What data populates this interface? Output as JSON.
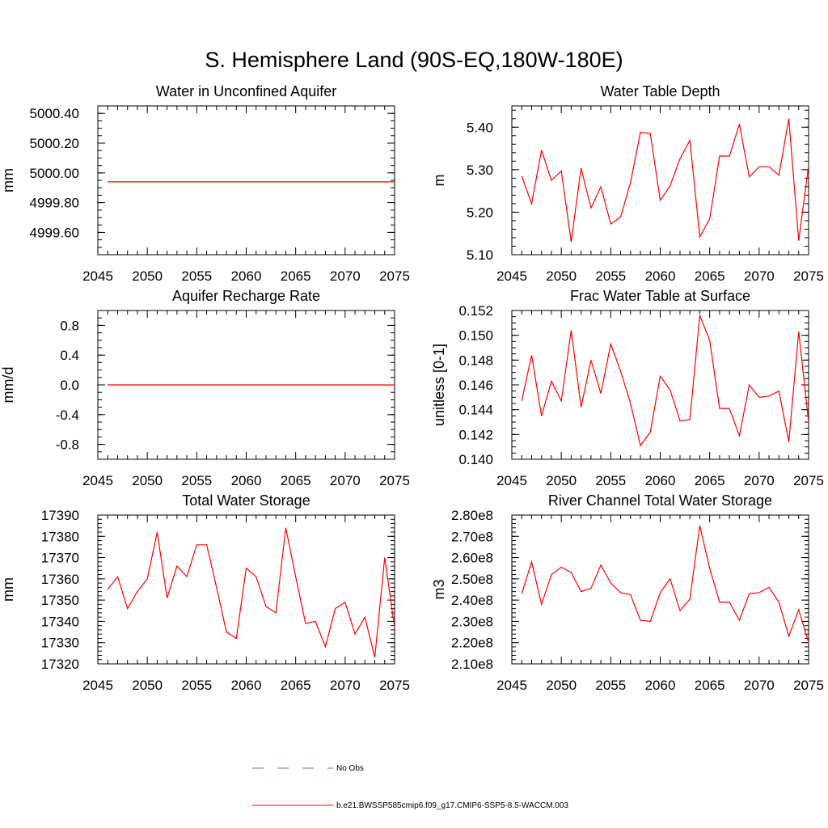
{
  "title": "S. Hemisphere Land (90S-EQ,180W-180E)",
  "legend": [
    {
      "label": "No Obs",
      "color": "#6e6eb4",
      "style": "dashed"
    },
    {
      "label": "b.e21.BWSSP585cmip6.f09_g17.CMIP6-SSP5-8.5-WACCM.003",
      "color": "#ff0000",
      "style": "solid"
    }
  ],
  "chart_data": [
    {
      "type": "line",
      "title": "Water in Unconfined Aquifer",
      "ylabel": "mm",
      "xlim": [
        2045,
        2075
      ],
      "ylim": [
        4999.45,
        5000.45
      ],
      "xticks": [
        "2045",
        "2050",
        "2055",
        "2060",
        "2065",
        "2070",
        "2075"
      ],
      "yticks": [
        {
          "v": 4999.6,
          "label": "4999.60"
        },
        {
          "v": 4999.8,
          "label": "4999.80"
        },
        {
          "v": 5000.0,
          "label": "5000.00"
        },
        {
          "v": 5000.2,
          "label": "5000.20"
        },
        {
          "v": 5000.4,
          "label": "5000.40"
        }
      ],
      "yminor": 0.05,
      "series": [
        {
          "name": "b.e21.BWSSP585cmip6.f09_g17.CMIP6-SSP5-8.5-WACCM.003",
          "x": [
            2046,
            2075
          ],
          "values": [
            4999.94,
            4999.94
          ]
        }
      ]
    },
    {
      "type": "line",
      "title": "Water Table Depth",
      "ylabel": "m",
      "xlim": [
        2045,
        2075
      ],
      "ylim": [
        5.1,
        5.45
      ],
      "xticks": [
        "2045",
        "2050",
        "2055",
        "2060",
        "2065",
        "2070",
        "2075"
      ],
      "yticks": [
        {
          "v": 5.1,
          "label": "5.10"
        },
        {
          "v": 5.2,
          "label": "5.20"
        },
        {
          "v": 5.3,
          "label": "5.30"
        },
        {
          "v": 5.4,
          "label": "5.40"
        }
      ],
      "yminor": 0.02,
      "series": [
        {
          "name": "b.e21.BWSSP585cmip6.f09_g17.CMIP6-SSP5-8.5-WACCM.003",
          "x": [
            2046,
            2047,
            2048,
            2049,
            2050,
            2051,
            2052,
            2053,
            2054,
            2055,
            2056,
            2057,
            2058,
            2059,
            2060,
            2061,
            2062,
            2063,
            2064,
            2065,
            2066,
            2067,
            2068,
            2069,
            2070,
            2071,
            2072,
            2073,
            2074,
            2075
          ],
          "values": [
            5.285,
            5.22,
            5.346,
            5.275,
            5.297,
            5.13,
            5.304,
            5.21,
            5.26,
            5.172,
            5.189,
            5.27,
            5.388,
            5.385,
            5.228,
            5.262,
            5.326,
            5.369,
            5.142,
            5.184,
            5.332,
            5.332,
            5.407,
            5.283,
            5.307,
            5.307,
            5.287,
            5.42,
            5.133,
            5.31
          ]
        }
      ]
    },
    {
      "type": "line",
      "title": "Aquifer Recharge Rate",
      "ylabel": "mm/d",
      "xlim": [
        2045,
        2075
      ],
      "ylim": [
        -1.0,
        1.0
      ],
      "xticks": [
        "2045",
        "2050",
        "2055",
        "2060",
        "2065",
        "2070",
        "2075"
      ],
      "yticks": [
        {
          "v": -0.8,
          "label": "-0.8"
        },
        {
          "v": -0.4,
          "label": "-0.4"
        },
        {
          "v": 0.0,
          "label": "0.0"
        },
        {
          "v": 0.4,
          "label": "0.4"
        },
        {
          "v": 0.8,
          "label": "0.8"
        }
      ],
      "yminor": 0.1,
      "series": [
        {
          "name": "b.e21.BWSSP585cmip6.f09_g17.CMIP6-SSP5-8.5-WACCM.003",
          "x": [
            2046,
            2075
          ],
          "values": [
            0.0,
            0.0
          ]
        }
      ]
    },
    {
      "type": "line",
      "title": "Frac Water Table at Surface",
      "ylabel": "unitless [0-1]",
      "xlim": [
        2045,
        2075
      ],
      "ylim": [
        0.14,
        0.152
      ],
      "xticks": [
        "2045",
        "2050",
        "2055",
        "2060",
        "2065",
        "2070",
        "2075"
      ],
      "yticks": [
        {
          "v": 0.14,
          "label": "0.140"
        },
        {
          "v": 0.142,
          "label": "0.142"
        },
        {
          "v": 0.144,
          "label": "0.144"
        },
        {
          "v": 0.146,
          "label": "0.146"
        },
        {
          "v": 0.148,
          "label": "0.148"
        },
        {
          "v": 0.15,
          "label": "0.150"
        },
        {
          "v": 0.152,
          "label": "0.152"
        }
      ],
      "yminor": 0.0005,
      "series": [
        {
          "name": "b.e21.BWSSP585cmip6.f09_g17.CMIP6-SSP5-8.5-WACCM.003",
          "x": [
            2046,
            2047,
            2048,
            2049,
            2050,
            2051,
            2052,
            2053,
            2054,
            2055,
            2056,
            2057,
            2058,
            2059,
            2060,
            2061,
            2062,
            2063,
            2064,
            2065,
            2066,
            2067,
            2068,
            2069,
            2070,
            2071,
            2072,
            2073,
            2074,
            2075
          ],
          "values": [
            0.1447,
            0.1484,
            0.1435,
            0.1463,
            0.1447,
            0.1504,
            0.1442,
            0.148,
            0.1453,
            0.1493,
            0.1471,
            0.1445,
            0.1411,
            0.1422,
            0.1467,
            0.1456,
            0.1431,
            0.1432,
            0.1516,
            0.1496,
            0.1441,
            0.1441,
            0.1419,
            0.146,
            0.145,
            0.1451,
            0.1455,
            0.1414,
            0.1503,
            0.143
          ]
        }
      ]
    },
    {
      "type": "line",
      "title": "Total Water Storage",
      "ylabel": "mm",
      "xlim": [
        2045,
        2075
      ],
      "ylim": [
        17320,
        17390
      ],
      "xticks": [
        "2045",
        "2050",
        "2055",
        "2060",
        "2065",
        "2070",
        "2075"
      ],
      "yticks": [
        {
          "v": 17320,
          "label": "17320"
        },
        {
          "v": 17330,
          "label": "17330"
        },
        {
          "v": 17340,
          "label": "17340"
        },
        {
          "v": 17350,
          "label": "17350"
        },
        {
          "v": 17360,
          "label": "17360"
        },
        {
          "v": 17370,
          "label": "17370"
        },
        {
          "v": 17380,
          "label": "17380"
        },
        {
          "v": 17390,
          "label": "17390"
        }
      ],
      "yminor": 2,
      "series": [
        {
          "name": "b.e21.BWSSP585cmip6.f09_g17.CMIP6-SSP5-8.5-WACCM.003",
          "x": [
            2046,
            2047,
            2048,
            2049,
            2050,
            2051,
            2052,
            2053,
            2054,
            2055,
            2056,
            2057,
            2058,
            2059,
            2060,
            2061,
            2062,
            2063,
            2064,
            2065,
            2066,
            2067,
            2068,
            2069,
            2070,
            2071,
            2072,
            2073,
            2074,
            2075
          ],
          "values": [
            17355,
            17361,
            17346,
            17354,
            17360,
            17382,
            17351,
            17366,
            17361,
            17376,
            17376,
            17356,
            17335,
            17332,
            17365,
            17361,
            17347,
            17344,
            17384,
            17361,
            17339,
            17340,
            17328,
            17346,
            17349,
            17334,
            17342,
            17323,
            17370,
            17337
          ]
        }
      ]
    },
    {
      "type": "line",
      "title": "River Channel Total Water Storage",
      "ylabel": "m3",
      "xlim": [
        2045,
        2075
      ],
      "ylim": [
        210000000,
        280000000
      ],
      "xticks": [
        "2045",
        "2050",
        "2055",
        "2060",
        "2065",
        "2070",
        "2075"
      ],
      "yticks": [
        {
          "v": 210000000,
          "label": "2.10e8"
        },
        {
          "v": 220000000,
          "label": "2.20e8"
        },
        {
          "v": 230000000,
          "label": "2.30e8"
        },
        {
          "v": 240000000,
          "label": "2.40e8"
        },
        {
          "v": 250000000,
          "label": "2.50e8"
        },
        {
          "v": 260000000,
          "label": "2.60e8"
        },
        {
          "v": 270000000,
          "label": "2.70e8"
        },
        {
          "v": 280000000,
          "label": "2.80e8"
        }
      ],
      "yminor": 2000000,
      "series": [
        {
          "name": "b.e21.BWSSP585cmip6.f09_g17.CMIP6-SSP5-8.5-WACCM.003",
          "x": [
            2046,
            2047,
            2048,
            2049,
            2050,
            2051,
            2052,
            2053,
            2054,
            2055,
            2056,
            2057,
            2058,
            2059,
            2060,
            2061,
            2062,
            2063,
            2064,
            2065,
            2066,
            2067,
            2068,
            2069,
            2070,
            2071,
            2072,
            2073,
            2074,
            2075
          ],
          "values": [
            243000000,
            258000000,
            238000000,
            252000000,
            255500000,
            253000000,
            244000000,
            245500000,
            256500000,
            248000000,
            243500000,
            242500000,
            230500000,
            230000000,
            243500000,
            250000000,
            235000000,
            240500000,
            275000000,
            255000000,
            239000000,
            239000000,
            230500000,
            243000000,
            243500000,
            246000000,
            239000000,
            223000000,
            235500000,
            220000000
          ]
        }
      ]
    }
  ]
}
